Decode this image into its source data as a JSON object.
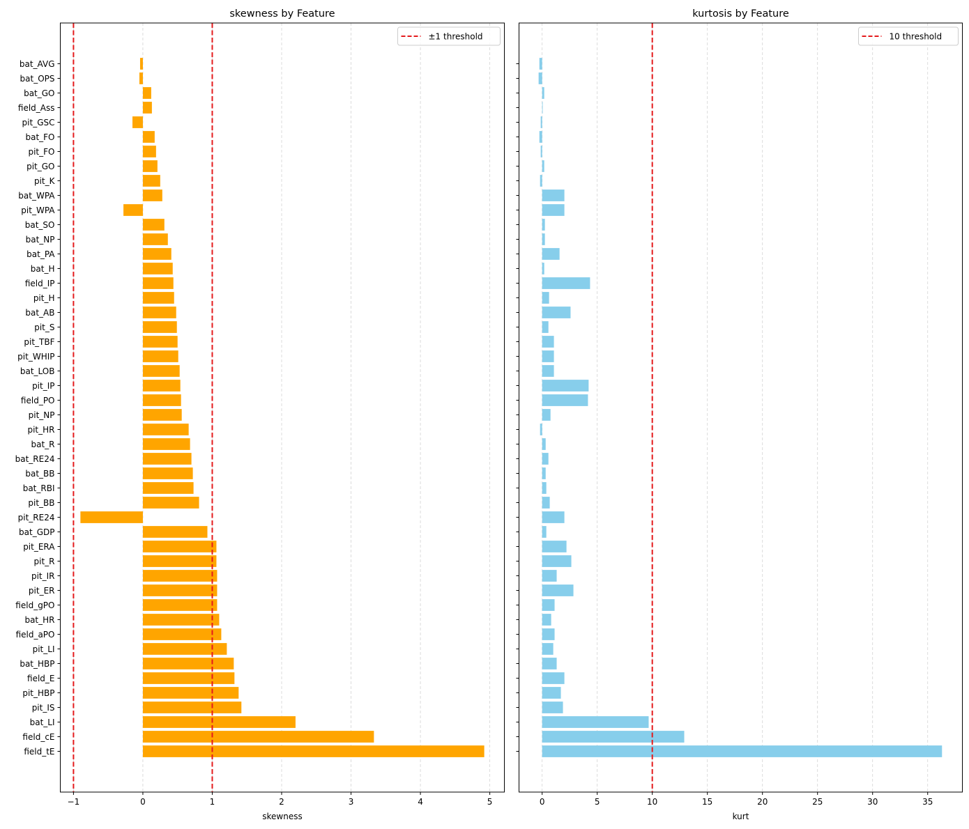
{
  "colors": {
    "skew_bar": "#ffa500",
    "kurt_bar": "#87ceeb",
    "threshold": "#e41a1c",
    "grid": "#d3d3d3"
  },
  "chart_data": [
    {
      "type": "bar",
      "orientation": "horizontal",
      "title": "skewness by Feature",
      "xlabel": "skewness",
      "ylabel": "",
      "xlim": [
        -1.19,
        5.21
      ],
      "xticks": [
        -1,
        0,
        1,
        2,
        3,
        4,
        5
      ],
      "xtick_labels": [
        "−1",
        "0",
        "1",
        "2",
        "3",
        "4",
        "5"
      ],
      "grid": "x-dashed",
      "legend": {
        "position": "top-right",
        "entries": [
          {
            "label": "±1 threshold",
            "style": "dashed-red"
          }
        ]
      },
      "thresholds": [
        -1,
        1
      ],
      "categories": [
        "bat_AVG",
        "bat_OPS",
        "bat_GO",
        "field_Ass",
        "pit_GSC",
        "bat_FO",
        "pit_FO",
        "pit_GO",
        "pit_K",
        "bat_WPA",
        "pit_WPA",
        "bat_SO",
        "bat_NP",
        "bat_PA",
        "bat_H",
        "field_IP",
        "pit_H",
        "bat_AB",
        "pit_S",
        "pit_TBF",
        "pit_WHIP",
        "bat_LOB",
        "pit_IP",
        "field_PO",
        "pit_NP",
        "pit_HR",
        "bat_R",
        "bat_RE24",
        "bat_BB",
        "bat_RBI",
        "pit_BB",
        "pit_RE24",
        "bat_GDP",
        "pit_ERA",
        "pit_R",
        "pit_IR",
        "pit_ER",
        "field_gPO",
        "bat_HR",
        "field_aPO",
        "pit_LI",
        "bat_HBP",
        "field_E",
        "pit_HBP",
        "pit_IS",
        "bat_LI",
        "field_cE",
        "field_tE"
      ],
      "values": [
        -0.04,
        -0.05,
        0.12,
        0.13,
        -0.15,
        0.17,
        0.19,
        0.21,
        0.25,
        0.28,
        -0.28,
        0.31,
        0.36,
        0.41,
        0.43,
        0.44,
        0.45,
        0.48,
        0.49,
        0.5,
        0.51,
        0.53,
        0.54,
        0.55,
        0.56,
        0.66,
        0.68,
        0.7,
        0.72,
        0.73,
        0.81,
        -0.9,
        0.93,
        1.06,
        1.06,
        1.07,
        1.07,
        1.07,
        1.1,
        1.13,
        1.21,
        1.31,
        1.32,
        1.38,
        1.42,
        2.2,
        3.33,
        4.92
      ]
    },
    {
      "type": "bar",
      "orientation": "horizontal",
      "title": "kurtosis by Feature",
      "xlabel": "kurt",
      "ylabel": "",
      "xlim": [
        -2.1,
        38.15
      ],
      "xticks": [
        0,
        5,
        10,
        15,
        20,
        25,
        30,
        35
      ],
      "xtick_labels": [
        "0",
        "5",
        "10",
        "15",
        "20",
        "25",
        "30",
        "35"
      ],
      "grid": "x-dashed",
      "legend": {
        "position": "top-right",
        "entries": [
          {
            "label": "10 threshold",
            "style": "dashed-red"
          }
        ]
      },
      "thresholds": [
        10
      ],
      "shared_y": true,
      "categories": [
        "bat_AVG",
        "bat_OPS",
        "bat_GO",
        "field_Ass",
        "pit_GSC",
        "bat_FO",
        "pit_FO",
        "pit_GO",
        "pit_K",
        "bat_WPA",
        "pit_WPA",
        "bat_SO",
        "bat_NP",
        "bat_PA",
        "bat_H",
        "field_IP",
        "pit_H",
        "bat_AB",
        "pit_S",
        "pit_TBF",
        "pit_WHIP",
        "bat_LOB",
        "pit_IP",
        "field_PO",
        "pit_NP",
        "pit_HR",
        "bat_R",
        "bat_RE24",
        "bat_BB",
        "bat_RBI",
        "pit_BB",
        "pit_RE24",
        "bat_GDP",
        "pit_ERA",
        "pit_R",
        "pit_IR",
        "pit_ER",
        "field_gPO",
        "bat_HR",
        "field_aPO",
        "pit_LI",
        "bat_HBP",
        "field_E",
        "pit_HBP",
        "pit_IS",
        "bat_LI",
        "field_cE",
        "field_tE"
      ],
      "values": [
        -0.25,
        -0.32,
        0.19,
        0.02,
        -0.13,
        -0.25,
        -0.13,
        0.19,
        -0.19,
        2.02,
        2.02,
        0.25,
        0.25,
        1.58,
        0.19,
        4.35,
        0.63,
        2.58,
        0.57,
        1.07,
        1.07,
        1.07,
        4.22,
        4.16,
        0.76,
        -0.19,
        0.32,
        0.57,
        0.32,
        0.38,
        0.69,
        2.02,
        0.38,
        2.21,
        2.65,
        1.32,
        2.84,
        1.13,
        0.82,
        1.13,
        1.01,
        1.32,
        2.02,
        1.7,
        1.89,
        9.67,
        12.9,
        36.3
      ]
    }
  ]
}
